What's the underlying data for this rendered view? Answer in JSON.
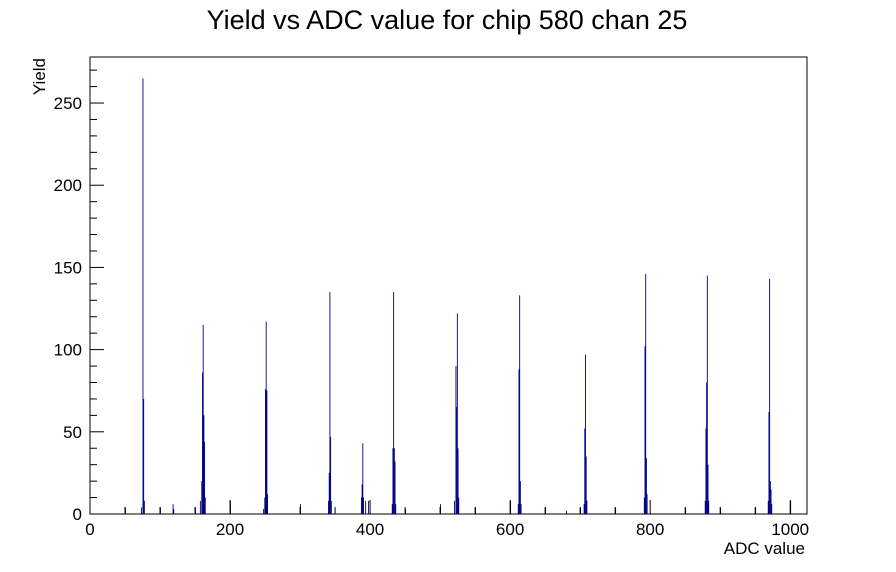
{
  "chart_data": {
    "type": "bar",
    "title": "Yield vs ADC value for chip 580 chan 25",
    "xlabel": "ADC value",
    "ylabel": "Yield",
    "xlim": [
      0,
      1024
    ],
    "ylim": [
      0,
      278
    ],
    "x_ticks": [
      0,
      200,
      400,
      600,
      800,
      1000
    ],
    "y_ticks": [
      0,
      50,
      100,
      150,
      200,
      250
    ],
    "grid": false,
    "legend": "none",
    "bin_width": 1,
    "series": [
      {
        "color": "#000080",
        "points": [
          {
            "x": 50,
            "y": 4
          },
          {
            "x": 73,
            "y": 4
          },
          {
            "x": 75,
            "y": 265
          },
          {
            "x": 76,
            "y": 70
          },
          {
            "x": 77,
            "y": 8
          },
          {
            "x": 100,
            "y": 4
          },
          {
            "x": 118,
            "y": 6
          },
          {
            "x": 119,
            "y": 3
          },
          {
            "x": 150,
            "y": 4
          },
          {
            "x": 157,
            "y": 8
          },
          {
            "x": 159,
            "y": 20
          },
          {
            "x": 160,
            "y": 86
          },
          {
            "x": 161,
            "y": 115
          },
          {
            "x": 162,
            "y": 60
          },
          {
            "x": 163,
            "y": 44
          },
          {
            "x": 164,
            "y": 10
          },
          {
            "x": 200,
            "y": 8
          },
          {
            "x": 247,
            "y": 3
          },
          {
            "x": 249,
            "y": 10
          },
          {
            "x": 250,
            "y": 76
          },
          {
            "x": 251,
            "y": 117
          },
          {
            "x": 252,
            "y": 75
          },
          {
            "x": 253,
            "y": 12
          },
          {
            "x": 300,
            "y": 6
          },
          {
            "x": 340,
            "y": 8
          },
          {
            "x": 341,
            "y": 25
          },
          {
            "x": 342,
            "y": 135
          },
          {
            "x": 343,
            "y": 47
          },
          {
            "x": 344,
            "y": 8
          },
          {
            "x": 387,
            "y": 10
          },
          {
            "x": 388,
            "y": 18
          },
          {
            "x": 389,
            "y": 43
          },
          {
            "x": 390,
            "y": 10
          },
          {
            "x": 393,
            "y": 8
          },
          {
            "x": 397,
            "y": 8
          },
          {
            "x": 431,
            "y": 6
          },
          {
            "x": 432,
            "y": 40
          },
          {
            "x": 433,
            "y": 135
          },
          {
            "x": 434,
            "y": 40
          },
          {
            "x": 435,
            "y": 32
          },
          {
            "x": 436,
            "y": 6
          },
          {
            "x": 450,
            "y": 3
          },
          {
            "x": 500,
            "y": 6
          },
          {
            "x": 520,
            "y": 8
          },
          {
            "x": 522,
            "y": 90
          },
          {
            "x": 523,
            "y": 65
          },
          {
            "x": 524,
            "y": 122
          },
          {
            "x": 525,
            "y": 40
          },
          {
            "x": 526,
            "y": 10
          },
          {
            "x": 550,
            "y": 4
          },
          {
            "x": 600,
            "y": 8
          },
          {
            "x": 611,
            "y": 6
          },
          {
            "x": 612,
            "y": 88
          },
          {
            "x": 613,
            "y": 133
          },
          {
            "x": 614,
            "y": 20
          },
          {
            "x": 615,
            "y": 6
          },
          {
            "x": 650,
            "y": 4
          },
          {
            "x": 680,
            "y": 2
          },
          {
            "x": 700,
            "y": 4
          },
          {
            "x": 705,
            "y": 6
          },
          {
            "x": 706,
            "y": 52
          },
          {
            "x": 707,
            "y": 97
          },
          {
            "x": 708,
            "y": 35
          },
          {
            "x": 709,
            "y": 8
          },
          {
            "x": 750,
            "y": 4
          },
          {
            "x": 791,
            "y": 10
          },
          {
            "x": 792,
            "y": 102
          },
          {
            "x": 793,
            "y": 146
          },
          {
            "x": 794,
            "y": 34
          },
          {
            "x": 795,
            "y": 12
          },
          {
            "x": 850,
            "y": 4
          },
          {
            "x": 878,
            "y": 8
          },
          {
            "x": 879,
            "y": 52
          },
          {
            "x": 880,
            "y": 80
          },
          {
            "x": 881,
            "y": 145
          },
          {
            "x": 882,
            "y": 30
          },
          {
            "x": 883,
            "y": 8
          },
          {
            "x": 900,
            "y": 4
          },
          {
            "x": 950,
            "y": 4
          },
          {
            "x": 968,
            "y": 8
          },
          {
            "x": 969,
            "y": 62
          },
          {
            "x": 970,
            "y": 143
          },
          {
            "x": 971,
            "y": 20
          },
          {
            "x": 972,
            "y": 15
          },
          {
            "x": 973,
            "y": 6
          },
          {
            "x": 1000,
            "y": 8
          }
        ]
      }
    ]
  }
}
